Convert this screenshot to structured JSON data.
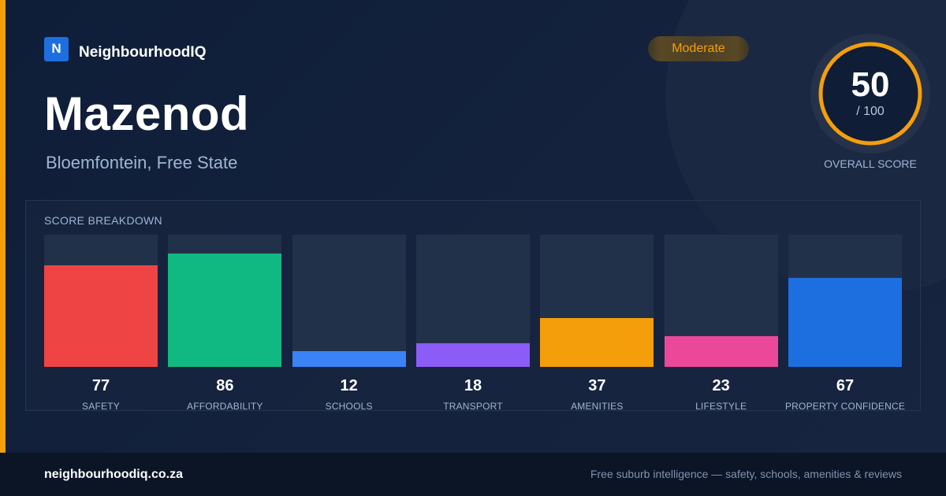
{
  "brand": {
    "logo_letter": "N",
    "name": "NeighbourhoodIQ"
  },
  "suburb": {
    "name": "Mazenod",
    "location": "Bloemfontein, Free State"
  },
  "rating_badge": "Moderate",
  "overall": {
    "score": 50,
    "max_label": "/ 100",
    "caption": "OVERALL SCORE",
    "fraction": 0.5,
    "ring_color": "#f59e0b"
  },
  "breakdown": {
    "title": "SCORE BREAKDOWN",
    "items": [
      {
        "label": "SAFETY",
        "value": 77,
        "color": "#ef4444"
      },
      {
        "label": "AFFORDABILITY",
        "value": 86,
        "color": "#10b981"
      },
      {
        "label": "SCHOOLS",
        "value": 12,
        "color": "#3b82f6"
      },
      {
        "label": "TRANSPORT",
        "value": 18,
        "color": "#8b5cf6"
      },
      {
        "label": "AMENITIES",
        "value": 37,
        "color": "#f59e0b"
      },
      {
        "label": "LIFESTYLE",
        "value": 23,
        "color": "#ec4899"
      },
      {
        "label": "PROPERTY CONFIDENCE",
        "value": 67,
        "color": "#1d6fe0"
      }
    ]
  },
  "footer": {
    "domain": "neighbourhoodiq.co.za",
    "tagline": "Free suburb intelligence — safety, schools, amenities & reviews"
  }
}
